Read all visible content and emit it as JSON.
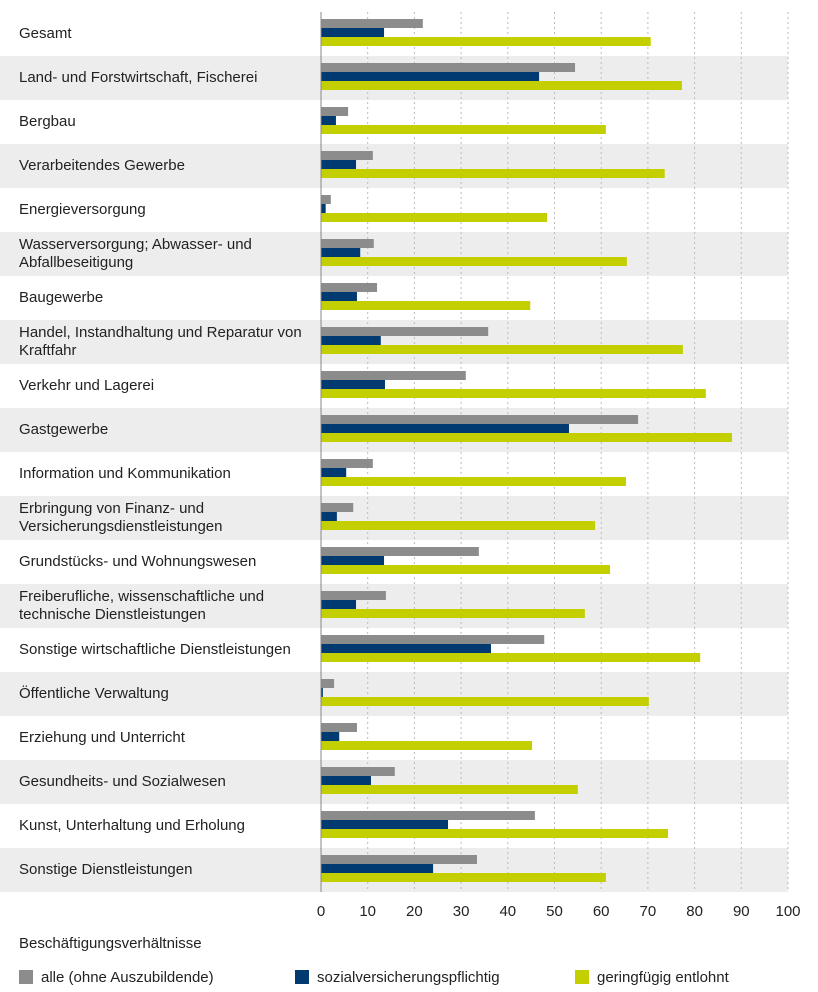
{
  "chart_data": {
    "type": "hbar",
    "categories": [
      "Gesamt",
      "Land- und Forstwirtschaft, Fischerei",
      "Bergbau",
      "Verarbeitendes Gewerbe",
      "Energieversorgung",
      "Wasserversorgung; Abwasser- und Abfallbeseitigung",
      "Baugewerbe",
      "Handel, Instandhaltung und Reparatur von Kraftfahr",
      "Verkehr und Lagerei",
      "Gastgewerbe",
      "Information und Kommunikation",
      "Erbringung von Finanz- und Versicherungsdienstleistungen",
      "Grundstücks- und Wohnungswesen",
      "Freiberufliche, wissenschaftliche und technische Dienstleistungen",
      "Sonstige wirtschaftliche Dienstleistungen",
      "Öffentliche Verwaltung",
      "Erziehung und Unterricht",
      "Gesundheits- und Sozialwesen",
      "Kunst, Unterhaltung und Erholung",
      "Sonstige Dienstleistungen"
    ],
    "series": [
      {
        "name": "alle (ohne Auszubildende)",
        "color": "#8c8c8c",
        "values": [
          21.8,
          54.4,
          5.8,
          11.1,
          2.1,
          11.3,
          12,
          35.8,
          31,
          67.9,
          11.1,
          6.9,
          33.8,
          13.9,
          47.8,
          2.8,
          7.7,
          15.8,
          45.8,
          33.4
        ]
      },
      {
        "name": "sozialversicherungspflichtig",
        "color": "#003a70",
        "values": [
          13.5,
          46.7,
          3.2,
          7.5,
          1,
          8.4,
          7.7,
          12.8,
          13.7,
          53.1,
          5.4,
          3.4,
          13.5,
          7.5,
          36.4,
          0.4,
          3.9,
          10.7,
          27.2,
          24
        ]
      },
      {
        "name": "geringfügig entlohnt",
        "color": "#c3cf00",
        "values": [
          70.6,
          77.3,
          61,
          73.6,
          48.4,
          65.5,
          44.8,
          77.5,
          82.4,
          88,
          65.3,
          58.7,
          61.9,
          56.5,
          81.2,
          70.2,
          45.2,
          55,
          74.3,
          61
        ]
      }
    ],
    "legend_title": "Beschäftigungsverhältnisse",
    "xlim": [
      0,
      100
    ],
    "xticks": [
      0,
      10,
      20,
      30,
      40,
      50,
      60,
      70,
      80,
      90,
      100
    ],
    "grid": true
  }
}
